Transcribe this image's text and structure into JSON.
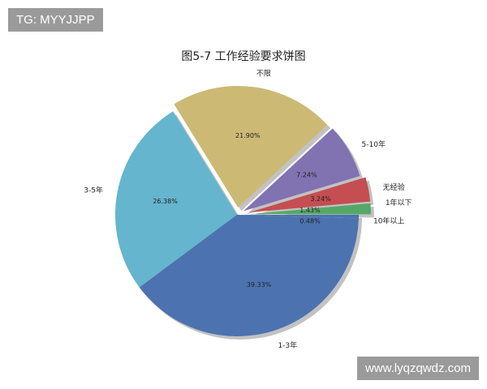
{
  "watermarks": {
    "top_left": "TG: MYYJJPP",
    "bottom_right": "www.lyqzqwdz.com"
  },
  "chart_data": {
    "type": "pie",
    "title": "图5-7  工作经验要求饼图",
    "start_angle": 0,
    "direction": "counterclockwise",
    "shadow": true,
    "slices": [
      {
        "label": "1年以下",
        "value": 1.43,
        "pct_label": "1.43%",
        "color": "#55a868",
        "explode": 0.1
      },
      {
        "label": "无经验",
        "value": 3.24,
        "pct_label": "3.24%",
        "color": "#c44e52",
        "explode": 0.1
      },
      {
        "label": "5-10年",
        "value": 7.24,
        "pct_label": "7.24%",
        "color": "#8172b2",
        "explode": 0.06
      },
      {
        "label": "不限",
        "value": 21.9,
        "pct_label": "21.90%",
        "color": "#ccb974",
        "explode": 0.06
      },
      {
        "label": "3-5年",
        "value": 26.38,
        "pct_label": "26.38%",
        "color": "#64b5cd",
        "explode": 0
      },
      {
        "label": "1-3年",
        "value": 39.33,
        "pct_label": "39.33%",
        "color": "#4c72b0",
        "explode": 0
      },
      {
        "label": "10年以上",
        "value": 0.48,
        "pct_label": "0.48%",
        "color": "#4c72b0",
        "explode": 0
      }
    ]
  }
}
